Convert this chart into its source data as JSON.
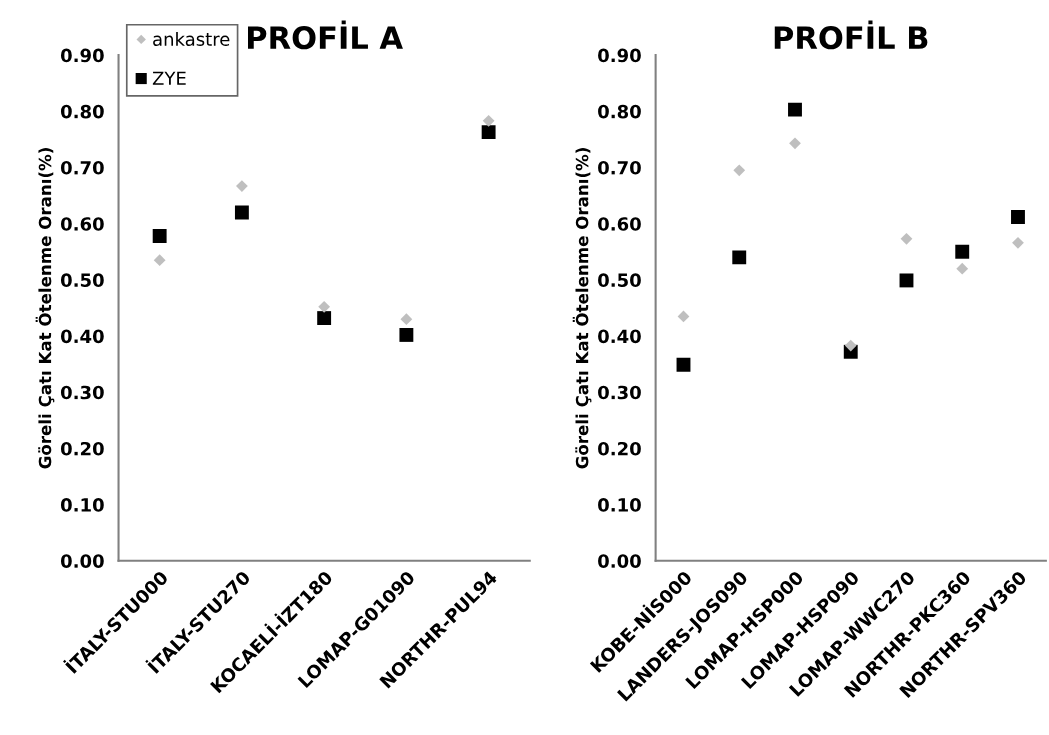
{
  "chart_data": [
    {
      "type": "scatter",
      "title": "PROFİL A",
      "ylabel": "Göreli Çatı Kat Ötelenme Oranı(%)",
      "categories": [
        "İTALY-STU000",
        "İTALY-STU270",
        "KOCAELİ-İZT180",
        "LOMAP-G01090",
        "NORTHR-PUL94"
      ],
      "series": [
        {
          "name": "ankastre",
          "color": "#bfbfbf",
          "marker": "diamond",
          "values": [
            0.535,
            0.667,
            0.452,
            0.43,
            0.783
          ]
        },
        {
          "name": "ZYE",
          "color": "#000000",
          "marker": "square",
          "values": [
            0.578,
            0.62,
            0.432,
            0.402,
            0.763
          ]
        }
      ],
      "ylim": [
        0,
        0.9
      ],
      "yticks": [
        {
          "value": 0,
          "label": "0.00"
        },
        {
          "value": 0.1,
          "label": "0.10"
        },
        {
          "value": 0.2,
          "label": "0.20"
        },
        {
          "value": 0.3,
          "label": "0.30"
        },
        {
          "value": 0.4,
          "label": "0.40"
        },
        {
          "value": 0.5,
          "label": "0.50"
        },
        {
          "value": 0.6,
          "label": "0.60"
        },
        {
          "value": 0.7,
          "label": "0.70"
        },
        {
          "value": 0.8,
          "label": "0.80"
        },
        {
          "value": 0.9,
          "label": "0.90"
        }
      ],
      "grid": false,
      "legend": "top left"
    },
    {
      "type": "scatter",
      "title": "PROFİL B",
      "ylabel": "Göreli Çatı Kat Ötelenme Oranı(%)",
      "categories": [
        "KOBE-NİS000",
        "LANDERS-JOS090",
        "LOMAP-HSP000",
        "LOMAP-HSP090",
        "LOMAP-WWC270",
        "NORTHR-PKC360",
        "NORTHR-SPV360"
      ],
      "series": [
        {
          "color": "#bfbfbf",
          "marker": "diamond",
          "values": [
            0.435,
            0.695,
            0.743,
            0.383,
            0.573,
            0.52,
            0.566
          ]
        },
        {
          "color": "#000000",
          "marker": "square",
          "values": [
            0.349,
            0.54,
            0.803,
            0.372,
            0.499,
            0.55,
            0.612
          ]
        }
      ],
      "ylim": [
        0,
        0.9
      ],
      "yticks": [
        {
          "value": 0,
          "label": "0.00"
        },
        {
          "value": 0.1,
          "label": "0.10"
        },
        {
          "value": 0.2,
          "label": "0.20"
        },
        {
          "value": 0.3,
          "label": "0.30"
        },
        {
          "value": 0.4,
          "label": "0.40"
        },
        {
          "value": 0.5,
          "label": "0.50"
        },
        {
          "value": 0.6,
          "label": "0.60"
        },
        {
          "value": 0.7,
          "label": "0.70"
        },
        {
          "value": 0.8,
          "label": "0.80"
        },
        {
          "value": 0.9,
          "label": "0.90"
        }
      ],
      "grid": false
    }
  ]
}
